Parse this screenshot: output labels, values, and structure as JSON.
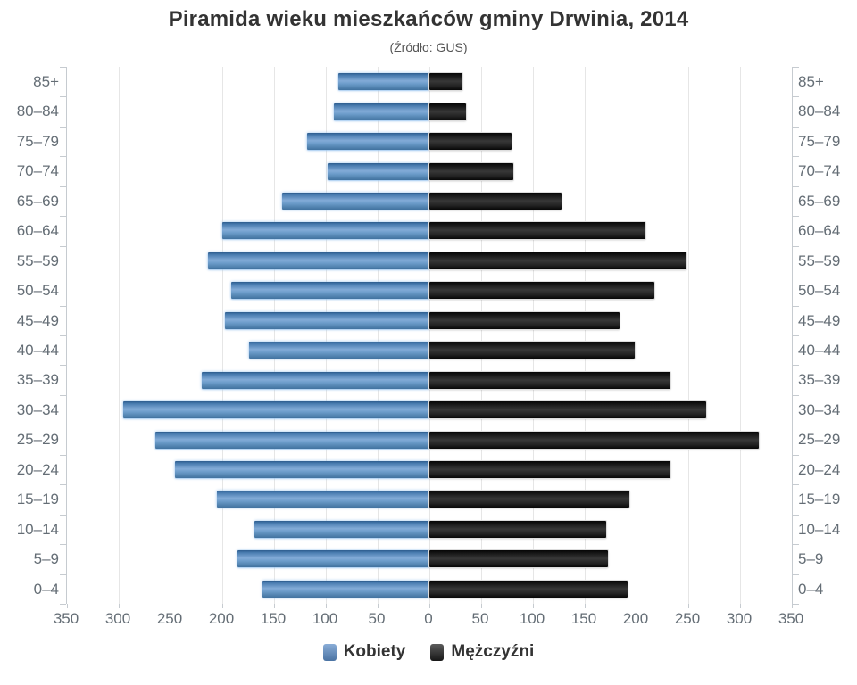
{
  "header": {
    "title": "Piramida wieku mieszkańców gminy Drwinia, 2014",
    "subtitle": "(Źródło: GUS)"
  },
  "chart_data": {
    "type": "bar",
    "variant": "population-pyramid",
    "title": "Piramida wieku mieszkańców gminy Drwinia, 2014",
    "subtitle": "(Źródło: GUS)",
    "categories": [
      "85+",
      "80–84",
      "75–79",
      "70–74",
      "65–69",
      "60–64",
      "55–59",
      "50–54",
      "45–49",
      "40–44",
      "35–39",
      "30–34",
      "25–29",
      "20–24",
      "15–19",
      "10–14",
      "5–9",
      "0–4"
    ],
    "series": [
      {
        "name": "Kobiety",
        "side": "left",
        "color": "#5b8dc7",
        "values": [
          88,
          92,
          118,
          98,
          142,
          200,
          214,
          191,
          197,
          174,
          220,
          296,
          265,
          246,
          205,
          169,
          185,
          161
        ]
      },
      {
        "name": "Mężczyźni",
        "side": "right",
        "color": "#1c1c1c",
        "values": [
          32,
          35,
          79,
          81,
          128,
          209,
          248,
          217,
          184,
          198,
          233,
          267,
          318,
          233,
          193,
          171,
          172,
          191
        ]
      }
    ],
    "x_axis": {
      "max": 350,
      "step": 50,
      "tick_labels": [
        "350",
        "300",
        "250",
        "200",
        "150",
        "100",
        "50",
        "0",
        "50",
        "100",
        "150",
        "200",
        "250",
        "300",
        "350"
      ]
    },
    "grid": true,
    "legend_position": "bottom"
  }
}
